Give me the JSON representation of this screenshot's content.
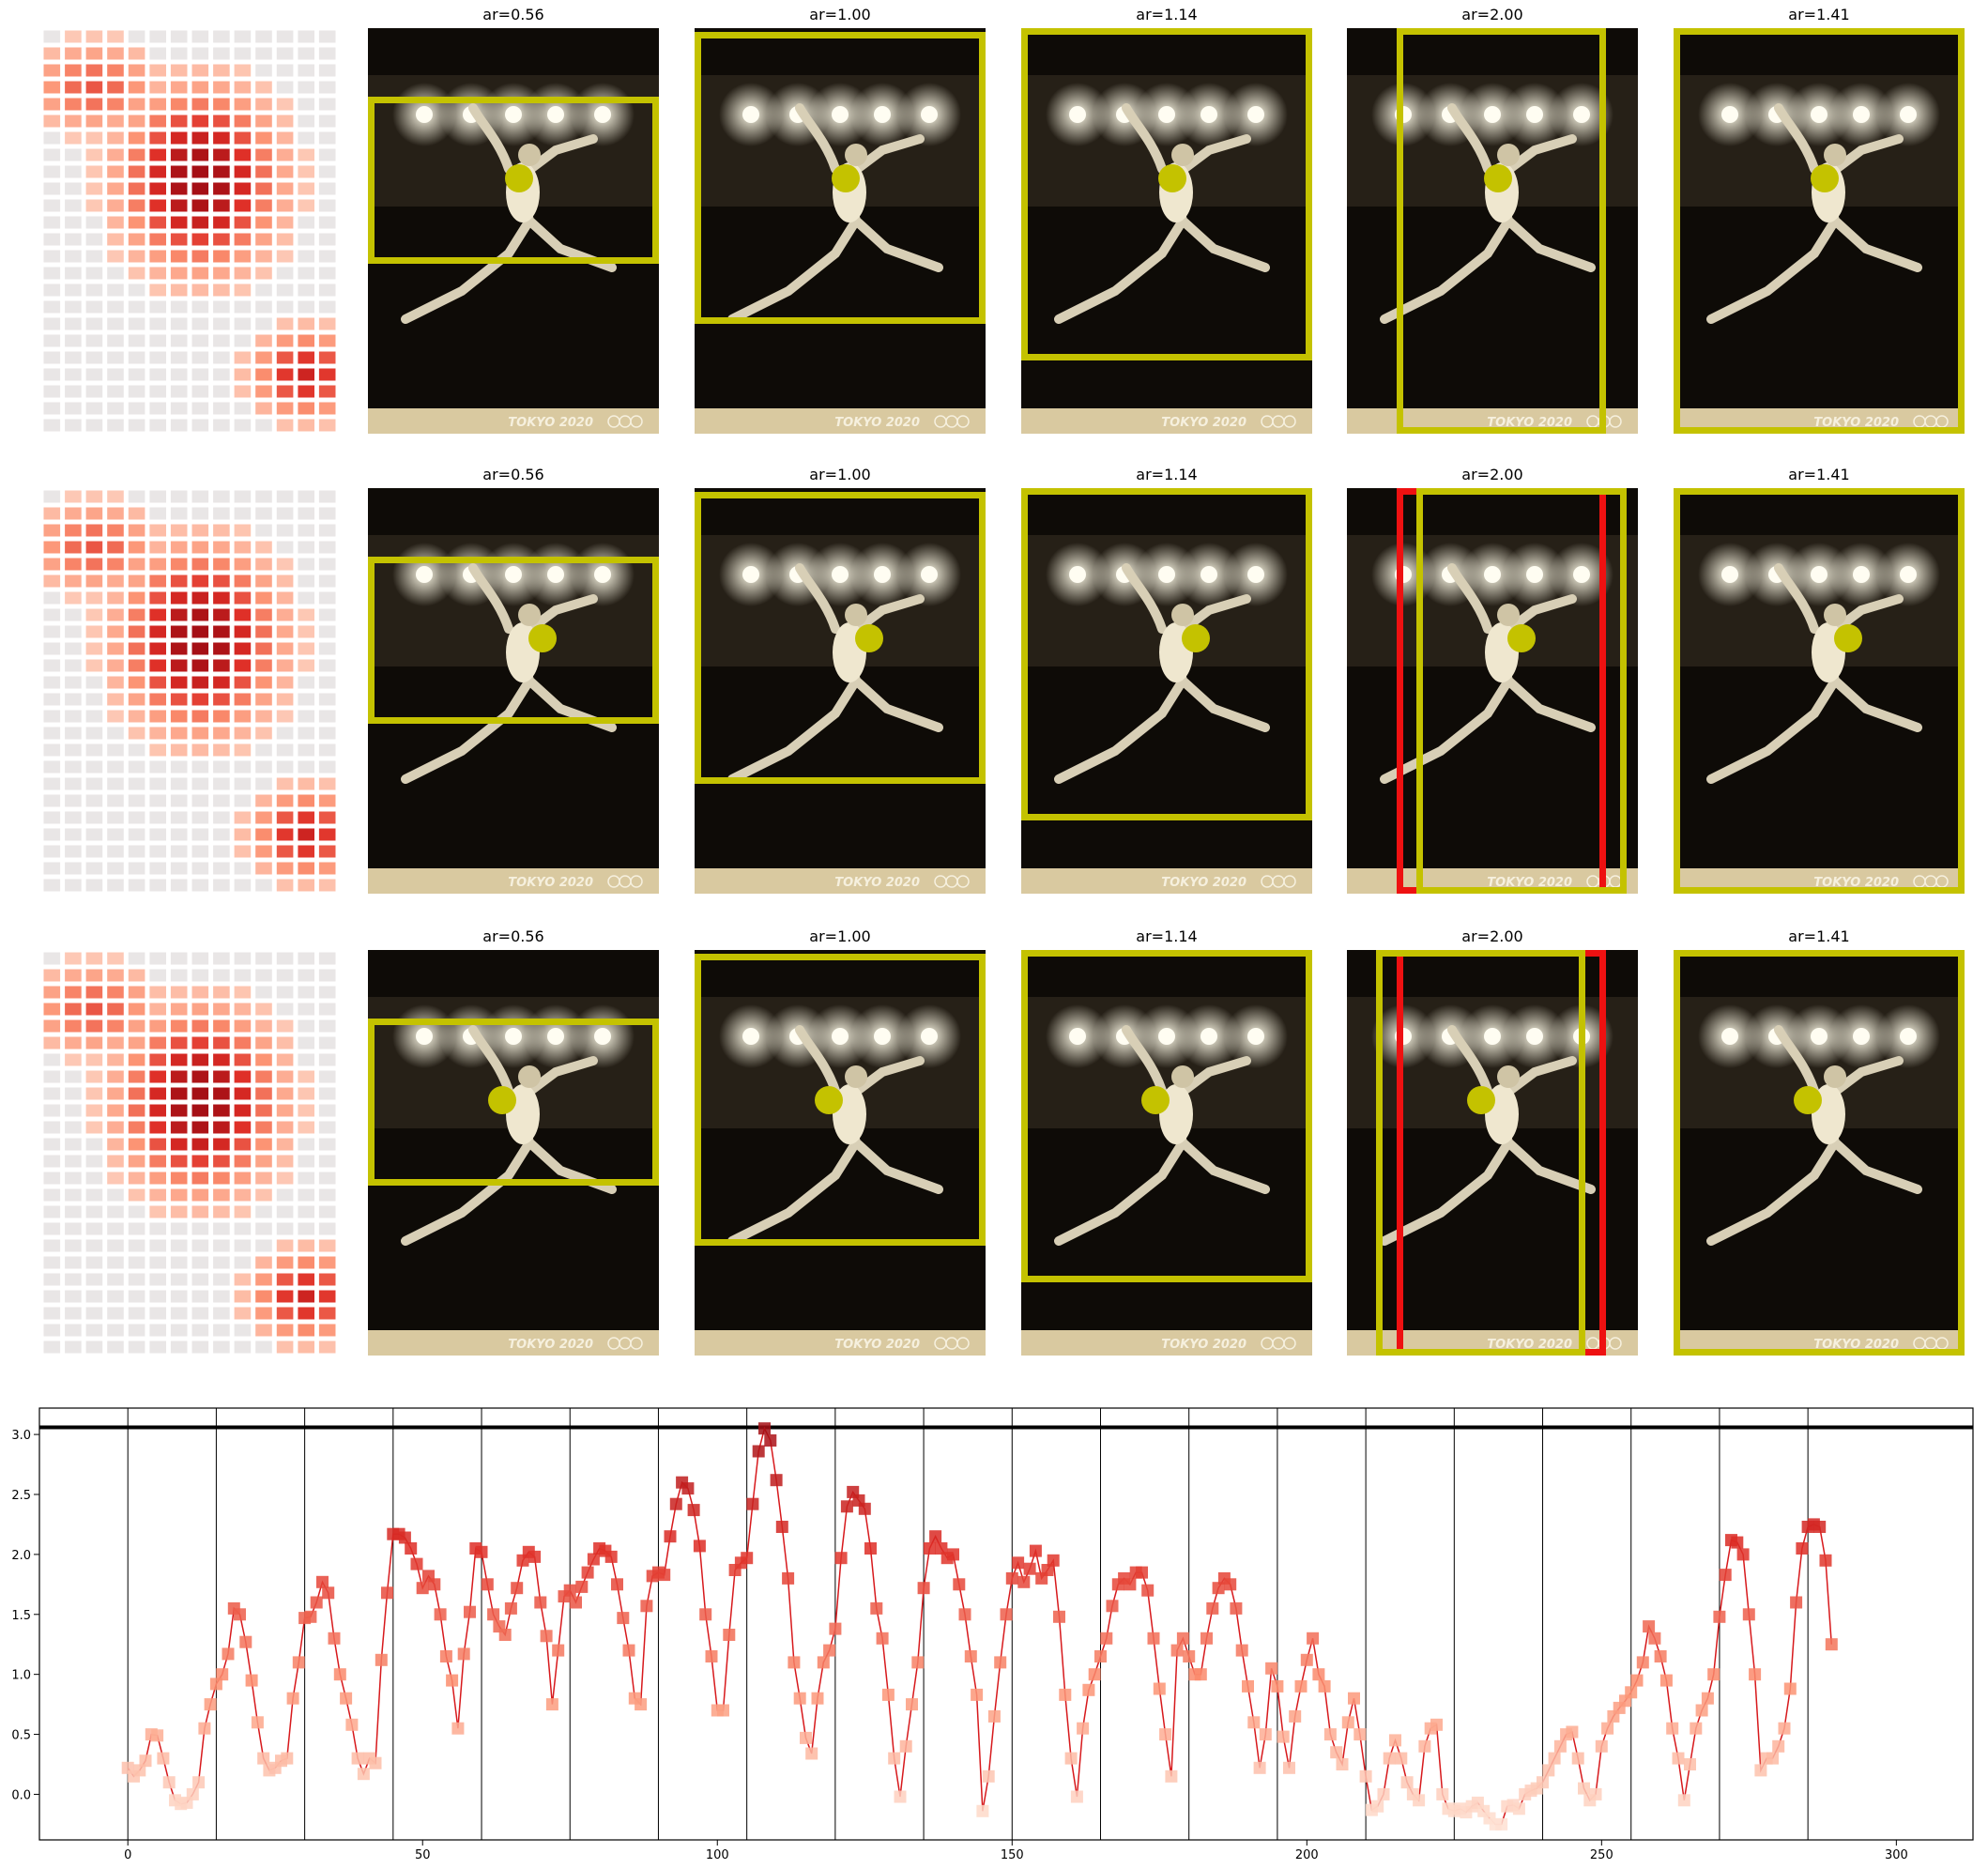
{
  "colors": {
    "crop_primary": "#c4c200",
    "crop_alt": "#ee1111",
    "dot": "#c4c200",
    "series_line": "#d7191c",
    "stage_dark": "#0e0b07",
    "floor_light": "#d9c9a0"
  },
  "thumbnail_watermark": "TOKYO 2020",
  "rows": [
    {
      "panels": [
        {
          "title": "ar=0.56",
          "dot": [
            0.52,
            0.37
          ],
          "boxes": [
            {
              "x": 0.0,
              "y": 0.17,
              "w": 1.0,
              "h": 0.41,
              "color": "primary"
            }
          ]
        },
        {
          "title": "ar=1.00",
          "dot": [
            0.52,
            0.37
          ],
          "boxes": [
            {
              "x": 0.0,
              "y": 0.01,
              "w": 1.0,
              "h": 0.72,
              "color": "primary"
            }
          ]
        },
        {
          "title": "ar=1.14",
          "dot": [
            0.52,
            0.37
          ],
          "boxes": [
            {
              "x": 0.0,
              "y": 0.0,
              "w": 1.0,
              "h": 0.82,
              "color": "primary"
            }
          ]
        },
        {
          "title": "ar=2.00",
          "dot": [
            0.52,
            0.37
          ],
          "boxes": [
            {
              "x": 0.17,
              "y": 0.0,
              "w": 0.72,
              "h": 1.0,
              "color": "primary"
            }
          ]
        },
        {
          "title": "ar=1.41",
          "dot": [
            0.52,
            0.37
          ],
          "boxes": [
            {
              "x": 0.0,
              "y": 0.0,
              "w": 1.0,
              "h": 1.0,
              "color": "primary"
            }
          ]
        }
      ]
    },
    {
      "panels": [
        {
          "title": "ar=0.56",
          "dot": [
            0.6,
            0.37
          ],
          "boxes": [
            {
              "x": 0.0,
              "y": 0.17,
              "w": 1.0,
              "h": 0.41,
              "color": "primary"
            }
          ]
        },
        {
          "title": "ar=1.00",
          "dot": [
            0.6,
            0.37
          ],
          "boxes": [
            {
              "x": 0.0,
              "y": 0.01,
              "w": 1.0,
              "h": 0.72,
              "color": "primary"
            }
          ]
        },
        {
          "title": "ar=1.14",
          "dot": [
            0.6,
            0.37
          ],
          "boxes": [
            {
              "x": 0.0,
              "y": 0.0,
              "w": 1.0,
              "h": 0.82,
              "color": "primary"
            }
          ]
        },
        {
          "title": "ar=2.00",
          "dot": [
            0.6,
            0.37
          ],
          "boxes": [
            {
              "x": 0.17,
              "y": 0.0,
              "w": 0.72,
              "h": 1.0,
              "color": "alt"
            },
            {
              "x": 0.24,
              "y": 0.0,
              "w": 0.72,
              "h": 1.0,
              "color": "primary"
            }
          ]
        },
        {
          "title": "ar=1.41",
          "dot": [
            0.6,
            0.37
          ],
          "boxes": [
            {
              "x": 0.0,
              "y": 0.0,
              "w": 1.0,
              "h": 1.0,
              "color": "primary"
            }
          ]
        }
      ]
    },
    {
      "panels": [
        {
          "title": "ar=0.56",
          "dot": [
            0.46,
            0.37
          ],
          "boxes": [
            {
              "x": 0.0,
              "y": 0.17,
              "w": 1.0,
              "h": 0.41,
              "color": "primary"
            }
          ]
        },
        {
          "title": "ar=1.00",
          "dot": [
            0.46,
            0.37
          ],
          "boxes": [
            {
              "x": 0.0,
              "y": 0.01,
              "w": 1.0,
              "h": 0.72,
              "color": "primary"
            }
          ]
        },
        {
          "title": "ar=1.14",
          "dot": [
            0.46,
            0.37
          ],
          "boxes": [
            {
              "x": 0.0,
              "y": 0.0,
              "w": 1.0,
              "h": 0.82,
              "color": "primary"
            }
          ]
        },
        {
          "title": "ar=2.00",
          "dot": [
            0.46,
            0.37
          ],
          "boxes": [
            {
              "x": 0.17,
              "y": 0.0,
              "w": 0.72,
              "h": 1.0,
              "color": "alt"
            },
            {
              "x": 0.1,
              "y": 0.0,
              "w": 0.72,
              "h": 1.0,
              "color": "primary"
            }
          ]
        },
        {
          "title": "ar=1.41",
          "dot": [
            0.46,
            0.37
          ],
          "boxes": [
            {
              "x": 0.0,
              "y": 0.0,
              "w": 1.0,
              "h": 1.0,
              "color": "primary"
            }
          ]
        }
      ]
    }
  ],
  "chart_data": {
    "type": "line",
    "title": "",
    "xlabel": "",
    "ylabel": "",
    "xlim": [
      -15,
      313
    ],
    "ylim": [
      -0.38,
      3.22
    ],
    "xticks": [
      0,
      50,
      100,
      150,
      200,
      250,
      300
    ],
    "yticks": [
      0.0,
      0.5,
      1.0,
      1.5,
      2.0,
      2.5,
      3.0
    ],
    "xticks_labels": [
      "0",
      "50",
      "100",
      "150",
      "200",
      "250",
      "300"
    ],
    "yticks_labels": [
      "0.0",
      "0.5",
      "1.0",
      "1.5",
      "2.0",
      "2.5",
      "3.0"
    ],
    "hline": 3.06,
    "vlines": [
      0,
      15,
      30,
      45,
      60,
      75,
      90,
      105,
      120,
      135,
      150,
      165,
      180,
      195,
      210,
      225,
      240,
      255,
      270,
      285
    ],
    "grid": false,
    "series": [
      {
        "x_start": 0,
        "values": [
          0.22,
          0.15,
          0.2,
          0.28,
          0.5,
          0.49,
          0.3,
          0.1,
          -0.05,
          -0.08,
          -0.07,
          0.0,
          0.1,
          0.55,
          0.75,
          0.92,
          1.0,
          1.17,
          1.55,
          1.5,
          1.27,
          0.95,
          0.6,
          0.3,
          0.2,
          0.22,
          0.28,
          0.3,
          0.8,
          1.1,
          1.47,
          1.48,
          1.6,
          1.77,
          1.68,
          1.3,
          1.0,
          0.8,
          0.58,
          0.3,
          0.17,
          0.3,
          0.26,
          1.12,
          1.68,
          2.17,
          2.17,
          2.14,
          2.05,
          1.92,
          1.72,
          1.82,
          1.75,
          1.5,
          1.15,
          0.95,
          0.55,
          1.17,
          1.52,
          2.05,
          2.02,
          1.75,
          1.5,
          1.4,
          1.33,
          1.55,
          1.72,
          1.95,
          2.02,
          1.98,
          1.6,
          1.32,
          0.75,
          1.2,
          1.65,
          1.7,
          1.6,
          1.73,
          1.85,
          1.96,
          2.05,
          2.03,
          1.98,
          1.75,
          1.47,
          1.2,
          0.8,
          0.75,
          1.57,
          1.82,
          1.85,
          1.83,
          2.15,
          2.42,
          2.6,
          2.55,
          2.37,
          2.07,
          1.5,
          1.15,
          0.7,
          0.7,
          1.33,
          1.87,
          1.93,
          1.97,
          2.42,
          2.86,
          3.05,
          2.95,
          2.62,
          2.23,
          1.8,
          1.1,
          0.8,
          0.47,
          0.34,
          0.8,
          1.1,
          1.2,
          1.38,
          1.97,
          2.4,
          2.52,
          2.45,
          2.38,
          2.05,
          1.55,
          1.3,
          0.83,
          0.3,
          -0.02,
          0.4,
          0.75,
          1.1,
          1.72,
          2.05,
          2.15,
          2.05,
          1.97,
          2.0,
          1.75,
          1.5,
          1.15,
          0.83,
          -0.14,
          0.15,
          0.65,
          1.1,
          1.5,
          1.8,
          1.93,
          1.77,
          1.88,
          2.03,
          1.8,
          1.87,
          1.95,
          1.48,
          0.83,
          0.3,
          -0.02,
          0.55,
          0.87,
          1.0,
          1.15,
          1.3,
          1.57,
          1.75,
          1.8,
          1.75,
          1.85,
          1.85,
          1.7,
          1.3,
          0.88,
          0.5,
          0.15,
          1.2,
          1.3,
          1.15,
          1.0,
          1.0,
          1.3,
          1.55,
          1.72,
          1.8,
          1.75,
          1.55,
          1.2,
          0.9,
          0.6,
          0.22,
          0.5,
          1.05,
          0.9,
          0.48,
          0.22,
          0.65,
          0.9,
          1.12,
          1.3,
          1.0,
          0.9,
          0.5,
          0.35,
          0.25,
          0.6,
          0.8,
          0.5,
          0.15,
          -0.13,
          -0.1,
          0.0,
          0.3,
          0.45,
          0.3,
          0.1,
          0.0,
          -0.05,
          0.4,
          0.55,
          0.58,
          0.0,
          -0.12,
          -0.14,
          -0.12,
          -0.15,
          -0.1,
          -0.07,
          -0.14,
          -0.2,
          -0.25,
          -0.25,
          -0.1,
          -0.09,
          -0.12,
          0.0,
          0.03,
          0.05,
          0.1,
          0.2,
          0.3,
          0.4,
          0.5,
          0.52,
          0.3,
          0.05,
          -0.05,
          0.0,
          0.4,
          0.55,
          0.65,
          0.72,
          0.78,
          0.85,
          0.95,
          1.1,
          1.4,
          1.3,
          1.15,
          0.95,
          0.55,
          0.3,
          -0.05,
          0.25,
          0.55,
          0.7,
          0.8,
          1.0,
          1.48,
          1.83,
          2.12,
          2.1,
          2.0,
          1.5,
          1.0,
          0.2,
          0.3,
          0.3,
          0.4,
          0.55,
          0.88,
          1.6,
          2.05,
          2.23,
          2.25,
          2.23,
          1.95,
          1.25
        ]
      }
    ]
  }
}
